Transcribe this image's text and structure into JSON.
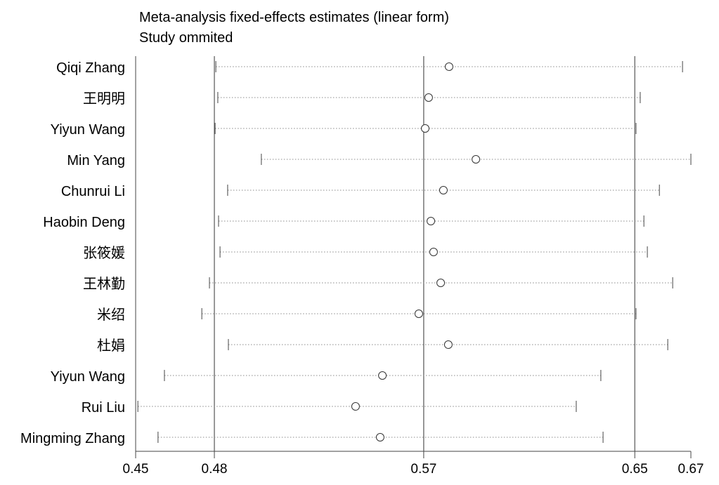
{
  "chart_data": {
    "type": "scatter",
    "title": "Meta-analysis fixed-effects estimates (linear form)",
    "subtitle": "Study ommited",
    "xlim": [
      0.448,
      0.6737
    ],
    "reference_lines": [
      0.48,
      0.5651,
      0.6509
    ],
    "ticks": [
      {
        "value": 0.448,
        "label": "0.45"
      },
      {
        "value": 0.48,
        "label": "0.48"
      },
      {
        "value": 0.5651,
        "label": "0.57"
      },
      {
        "value": 0.6509,
        "label": "0.65"
      },
      {
        "value": 0.6737,
        "label": "0.67"
      }
    ],
    "studies": [
      {
        "name": "Qiqi Zhang",
        "lower": 0.4806,
        "estimate": 0.5754,
        "upper": 0.6703
      },
      {
        "name": "王明明",
        "lower": 0.4814,
        "estimate": 0.5671,
        "upper": 0.6531
      },
      {
        "name": "Yiyun Wang",
        "lower": 0.4803,
        "estimate": 0.5657,
        "upper": 0.6514
      },
      {
        "name": "Min Yang",
        "lower": 0.4991,
        "estimate": 0.5863,
        "upper": 0.6737
      },
      {
        "name": "Chunrui Li",
        "lower": 0.4854,
        "estimate": 0.5731,
        "upper": 0.6609
      },
      {
        "name": "Haobin Deng",
        "lower": 0.4817,
        "estimate": 0.568,
        "upper": 0.6546
      },
      {
        "name": "张筱媛",
        "lower": 0.4823,
        "estimate": 0.5691,
        "upper": 0.656
      },
      {
        "name": "王林勤",
        "lower": 0.478,
        "estimate": 0.572,
        "upper": 0.6663
      },
      {
        "name": "米绍",
        "lower": 0.4749,
        "estimate": 0.5631,
        "upper": 0.6514
      },
      {
        "name": "杜娟",
        "lower": 0.4857,
        "estimate": 0.5751,
        "upper": 0.6643
      },
      {
        "name": "Yiyun Wang",
        "lower": 0.4597,
        "estimate": 0.5483,
        "upper": 0.6371
      },
      {
        "name": "Rui Liu",
        "lower": 0.4489,
        "estimate": 0.5374,
        "upper": 0.6271
      },
      {
        "name": "Mingming Zhang",
        "lower": 0.4571,
        "estimate": 0.5474,
        "upper": 0.638
      }
    ],
    "colors": {
      "line": "#555555",
      "ci": "#8a8a8a",
      "marker": "#333333"
    }
  }
}
